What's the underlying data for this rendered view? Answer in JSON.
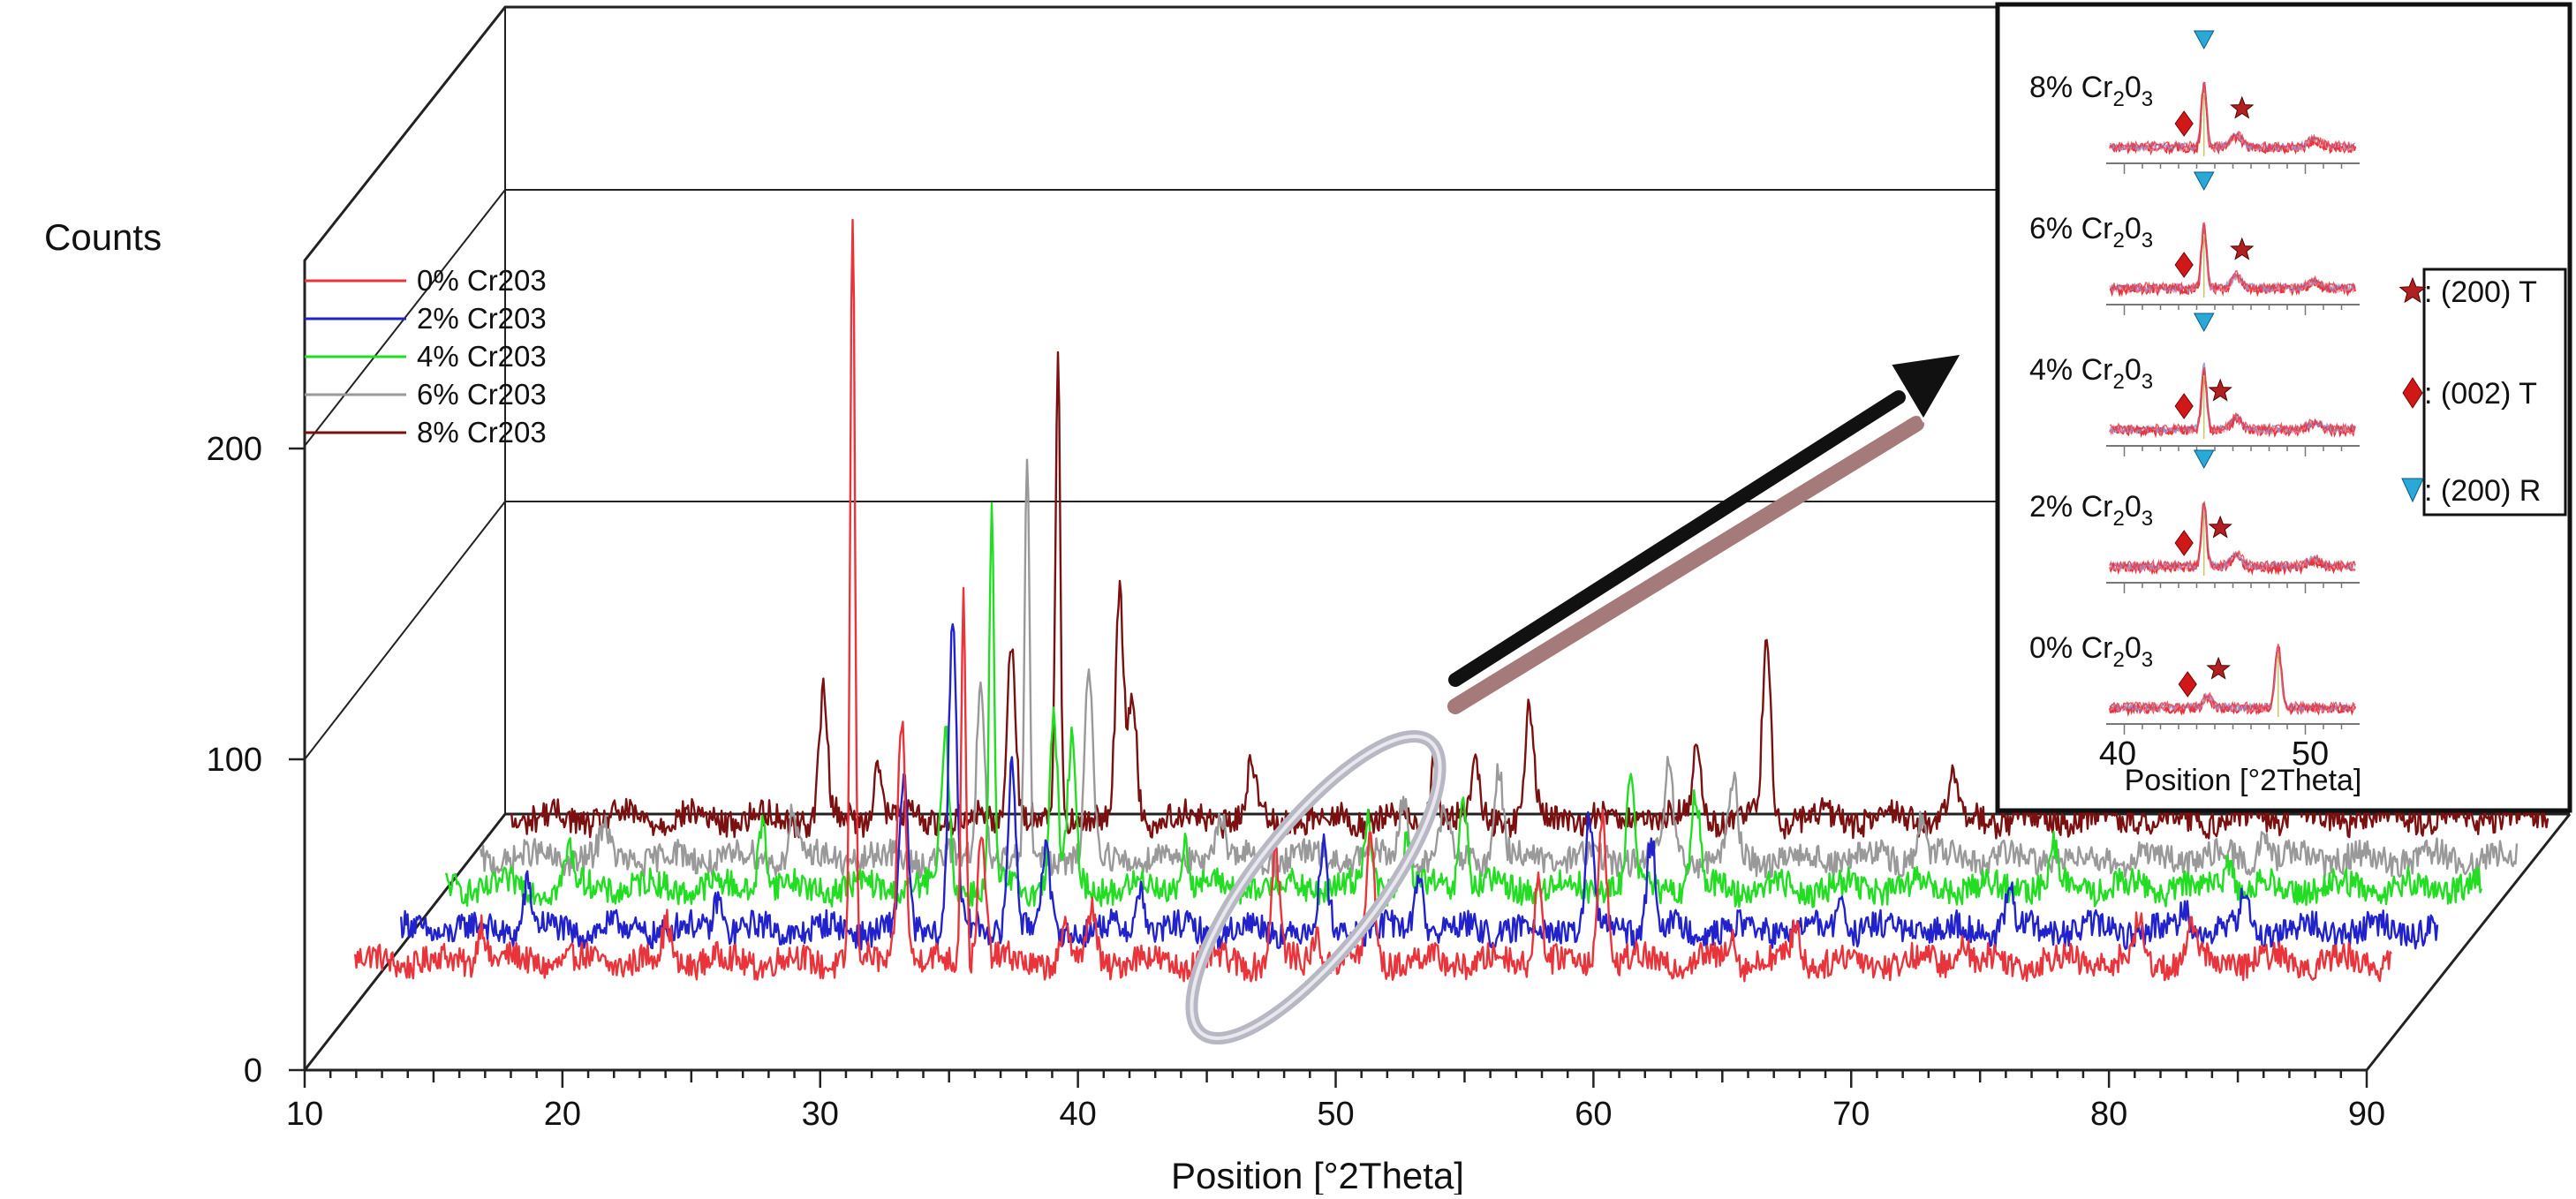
{
  "chart_data": {
    "type": "line",
    "subtype": "3d-waterfall",
    "title": "",
    "xlabel": "Position [°2Theta]",
    "ylabel": "Counts",
    "xlim": [
      10,
      90
    ],
    "ylim": [
      0,
      250
    ],
    "x_ticks": [
      10,
      20,
      30,
      40,
      50,
      60,
      70,
      80,
      90
    ],
    "y_ticks": [
      0,
      100,
      200
    ],
    "legend_position": "top-left",
    "series": [
      {
        "name": "0% Cr203",
        "color": "#e8343a",
        "baseline": 18,
        "peaks": [
          [
            15.9,
            14
          ],
          [
            23.1,
            12
          ],
          [
            30.3,
            240
          ],
          [
            32.2,
            80
          ],
          [
            34.6,
            120
          ],
          [
            35.3,
            40
          ],
          [
            38.6,
            10
          ],
          [
            39.6,
            18
          ],
          [
            46.7,
            35
          ],
          [
            48.3,
            10
          ],
          [
            50.4,
            40
          ],
          [
            56.9,
            28
          ],
          [
            59.4,
            50
          ],
          [
            64.4,
            10
          ],
          [
            66.9,
            12
          ],
          [
            73.4,
            8
          ],
          [
            80.2,
            12
          ],
          [
            82.3,
            12
          ]
        ]
      },
      {
        "name": "2% Cr203",
        "color": "#2222cc",
        "baseline": 14,
        "peaks": [
          [
            15.9,
            15
          ],
          [
            23.3,
            12
          ],
          [
            30.5,
            48
          ],
          [
            32.4,
            100
          ],
          [
            34.7,
            55
          ],
          [
            36.0,
            25
          ],
          [
            39.7,
            15
          ],
          [
            46.8,
            25
          ],
          [
            50.5,
            20
          ],
          [
            57.1,
            35
          ],
          [
            59.5,
            30
          ],
          [
            66.9,
            12
          ],
          [
            73.4,
            12
          ],
          [
            80.2,
            8
          ],
          [
            82.5,
            10
          ]
        ]
      },
      {
        "name": "4% Cr203",
        "color": "#22dd22",
        "baseline": 12,
        "peaks": [
          [
            15.8,
            12
          ],
          [
            23.3,
            22
          ],
          [
            30.4,
            50
          ],
          [
            32.2,
            120
          ],
          [
            34.6,
            55
          ],
          [
            35.3,
            45
          ],
          [
            39.7,
            15
          ],
          [
            46.8,
            22
          ],
          [
            48.3,
            15
          ],
          [
            50.5,
            30
          ],
          [
            57.0,
            35
          ],
          [
            59.5,
            30
          ],
          [
            73.4,
            12
          ],
          [
            80.2,
            10
          ]
        ]
      },
      {
        "name": "6% Cr203",
        "color": "#999999",
        "baseline": 10,
        "peaks": [
          [
            15.8,
            10
          ],
          [
            23.1,
            15
          ],
          [
            30.4,
            55
          ],
          [
            32.2,
            130
          ],
          [
            34.6,
            60
          ],
          [
            39.7,
            15
          ],
          [
            46.8,
            20
          ],
          [
            48.4,
            15
          ],
          [
            50.5,
            30
          ],
          [
            57.1,
            30
          ],
          [
            59.6,
            25
          ],
          [
            66.9,
            12
          ],
          [
            80.2,
            10
          ]
        ]
      },
      {
        "name": "8% Cr203",
        "color": "#7a1010",
        "baseline": 10,
        "peaks": [
          [
            23.1,
            40
          ],
          [
            25.2,
            20
          ],
          [
            30.4,
            60
          ],
          [
            32.2,
            150
          ],
          [
            34.6,
            70
          ],
          [
            35.1,
            40
          ],
          [
            39.7,
            18
          ],
          [
            46.8,
            20
          ],
          [
            48.4,
            15
          ],
          [
            50.5,
            35
          ],
          [
            57.0,
            25
          ],
          [
            59.7,
            60
          ],
          [
            66.9,
            15
          ],
          [
            80.2,
            12
          ]
        ]
      }
    ]
  },
  "inset": {
    "xlabel": "Position [°2Theta]",
    "x_ticks": [
      "40",
      "50"
    ],
    "xlim": [
      39,
      53
    ],
    "panels": [
      {
        "label_main": "8% Cr",
        "sub1": "2",
        "mid": "0",
        "sub2": "3",
        "trace_color": "#e8343a"
      },
      {
        "label_main": "6% Cr",
        "sub1": "2",
        "mid": "0",
        "sub2": "3",
        "trace_color": "#e8343a"
      },
      {
        "label_main": "4% Cr",
        "sub1": "2",
        "mid": "0",
        "sub2": "3",
        "trace_color": "#e8343a"
      },
      {
        "label_main": "2% Cr",
        "sub1": "2",
        "mid": "0",
        "sub2": "3",
        "trace_color": "#e8343a"
      },
      {
        "label_main": "0% Cr",
        "sub1": "2",
        "mid": "0",
        "sub2": "3",
        "trace_color": "#e8343a"
      }
    ]
  },
  "phase_legend": [
    {
      "symbol": "star",
      "color": "#b02020",
      "label": ": (200) T"
    },
    {
      "symbol": "diamond",
      "color": "#d01818",
      "label": ": (002) T"
    },
    {
      "symbol": "triangle-down",
      "color": "#2aa8d8",
      "label": ": (200) R"
    }
  ],
  "colors": {
    "highlight_ellipse": "#b8b8c4",
    "arrow": "#111111",
    "arrow_shadow": "#a57a7a"
  }
}
